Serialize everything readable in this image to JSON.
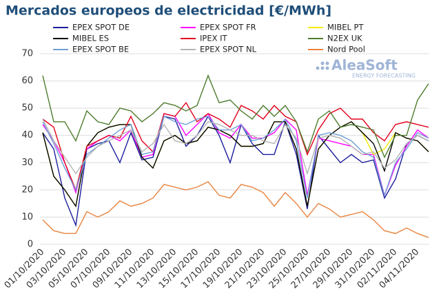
{
  "chart_data": {
    "type": "line",
    "title": "Mercados europeos de electricidad [€/MWh]",
    "watermark": "AleaSoft",
    "watermark_subtitle": "ENERGY FORECASTING",
    "categories": [
      "01/10/2020",
      null,
      "03/10/2020",
      null,
      "05/10/2020",
      null,
      "07/10/2020",
      null,
      "09/10/2020",
      null,
      "11/10/2020",
      null,
      "13/10/2020",
      null,
      "15/10/2020",
      null,
      "17/10/2020",
      null,
      "19/10/2020",
      null,
      "21/10/2020",
      null,
      "23/10/2020",
      null,
      "25/10/2020",
      null,
      "27/10/2020",
      null,
      "29/10/2020",
      null,
      "31/10/2020",
      null,
      "02/11/2020",
      null,
      "04/11/2020",
      null
    ],
    "ylim": [
      0,
      70
    ],
    "yticks": [
      0,
      10,
      20,
      30,
      40,
      50,
      60,
      70
    ],
    "grid": true,
    "series": [
      {
        "name": "EPEX SPOT DE",
        "color": "#1c1c9c",
        "values": [
          41,
          35,
          17,
          7,
          35,
          37,
          38,
          30,
          41,
          31,
          32,
          47,
          46,
          36,
          40,
          47,
          40,
          30,
          44,
          37,
          33,
          33,
          45,
          33,
          13,
          40,
          35,
          30,
          33,
          30,
          31,
          17,
          24,
          37,
          40,
          38
        ]
      },
      {
        "name": "EPEX SPOT FR",
        "color": "#ff00ff",
        "values": [
          44,
          38,
          30,
          19,
          35,
          38,
          40,
          38,
          42,
          32,
          33,
          48,
          47,
          40,
          44,
          48,
          41,
          39,
          44,
          39,
          39,
          41,
          46,
          42,
          18,
          39,
          38,
          37,
          36,
          33,
          33,
          18,
          29,
          36,
          42,
          39
        ]
      },
      {
        "name": "MIBEL PT",
        "color": "#f2ea00",
        "values": [
          41,
          25,
          20,
          14,
          36,
          41,
          43,
          44,
          44,
          32,
          28,
          38,
          40,
          37,
          38,
          43,
          42,
          40,
          36,
          36,
          37,
          45,
          45,
          35,
          14,
          35,
          40,
          43,
          45,
          41,
          33,
          35,
          41,
          39,
          38,
          34
        ]
      },
      {
        "name": "MIBEL ES",
        "color": "#000000",
        "values": [
          41,
          25,
          20,
          14,
          36,
          41,
          43,
          44,
          44,
          32,
          28,
          38,
          40,
          37,
          38,
          43,
          42,
          40,
          36,
          36,
          37,
          45,
          45,
          35,
          14,
          35,
          40,
          43,
          45,
          41,
          37,
          27,
          41,
          39,
          38,
          34
        ]
      },
      {
        "name": "IPEX IT",
        "color": "#e3001b",
        "values": [
          46,
          43,
          30,
          20,
          36,
          38,
          40,
          39,
          47,
          38,
          34,
          48,
          47,
          52,
          45,
          48,
          46,
          43,
          51,
          49,
          46,
          51,
          47,
          45,
          33,
          42,
          48,
          50,
          46,
          46,
          41,
          38,
          44,
          45,
          44,
          43
        ]
      },
      {
        "name": "N2EX UK",
        "color": "#4d7c2c",
        "values": [
          62,
          45,
          45,
          38,
          49,
          45,
          44,
          50,
          49,
          45,
          48,
          52,
          51,
          49,
          51,
          62,
          52,
          53,
          49,
          46,
          51,
          47,
          51,
          45,
          34,
          46,
          49,
          43,
          44,
          43,
          42,
          32,
          40,
          40,
          53,
          59
        ]
      },
      {
        "name": "EPEX SPOT BE",
        "color": "#6d9fd6",
        "values": [
          45,
          37,
          28,
          20,
          33,
          36,
          39,
          42,
          44,
          33,
          34,
          47,
          45,
          44,
          46,
          47,
          42,
          42,
          44,
          38,
          39,
          42,
          46,
          38,
          17,
          40,
          41,
          40,
          38,
          34,
          32,
          18,
          30,
          35,
          41,
          39
        ]
      },
      {
        "name": "EPEX SPOT NL",
        "color": "#b3b3b3",
        "values": [
          46,
          38,
          32,
          26,
          32,
          36,
          38,
          40,
          42,
          34,
          37,
          44,
          38,
          37,
          40,
          45,
          44,
          42,
          40,
          40,
          38,
          37,
          44,
          39,
          26,
          39,
          40,
          39,
          36,
          33,
          34,
          28,
          31,
          37,
          40,
          38
        ]
      },
      {
        "name": "Nord Pool",
        "color": "#e8823c",
        "values": [
          9,
          5,
          4,
          4,
          12,
          10,
          12,
          16,
          14,
          15,
          17,
          22,
          21,
          20,
          21,
          23,
          18,
          17,
          22,
          21,
          19,
          14,
          19,
          15,
          10,
          15,
          13,
          10,
          11,
          12,
          9,
          5,
          4,
          6,
          4,
          2.5
        ]
      }
    ]
  }
}
